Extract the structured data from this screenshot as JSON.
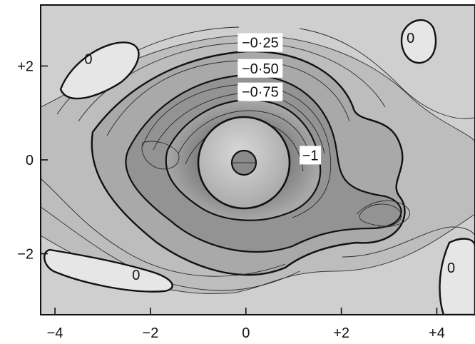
{
  "chart_data": {
    "type": "heatmap",
    "title": "",
    "xlabel": "",
    "ylabel": "",
    "xlim": [
      -4.3,
      4.8
    ],
    "ylim": [
      -3.3,
      3.3
    ],
    "x_ticks": [
      {
        "value": -4,
        "label": "−4"
      },
      {
        "value": -2,
        "label": "−2"
      },
      {
        "value": 0,
        "label": "0"
      },
      {
        "value": 2,
        "label": "+2"
      },
      {
        "value": 4,
        "label": "+4"
      }
    ],
    "y_ticks": [
      {
        "value": 2,
        "label": "+2"
      },
      {
        "value": 0,
        "label": "0"
      },
      {
        "value": -2,
        "label": "−2"
      }
    ],
    "contour_labels": [
      {
        "text": "−0·25",
        "x": 0.3,
        "y": 2.5,
        "boxed": true
      },
      {
        "text": "−0·50",
        "x": 0.3,
        "y": 1.95,
        "boxed": true
      },
      {
        "text": "−0·75",
        "x": 0.3,
        "y": 1.45,
        "boxed": true
      },
      {
        "text": "−1",
        "x": 1.35,
        "y": 0.1,
        "boxed": true
      },
      {
        "text": "0",
        "x": -3.3,
        "y": 2.15,
        "boxed": false
      },
      {
        "text": "0",
        "x": 3.45,
        "y": 2.6,
        "boxed": false
      },
      {
        "text": "0",
        "x": -2.3,
        "y": -2.45,
        "boxed": false
      },
      {
        "text": "0",
        "x": 4.3,
        "y": -2.3,
        "boxed": false
      }
    ],
    "highlighted_levels": [
      0,
      -0.25,
      -0.5,
      -0.75,
      -1
    ],
    "colormap": "grayscale"
  }
}
